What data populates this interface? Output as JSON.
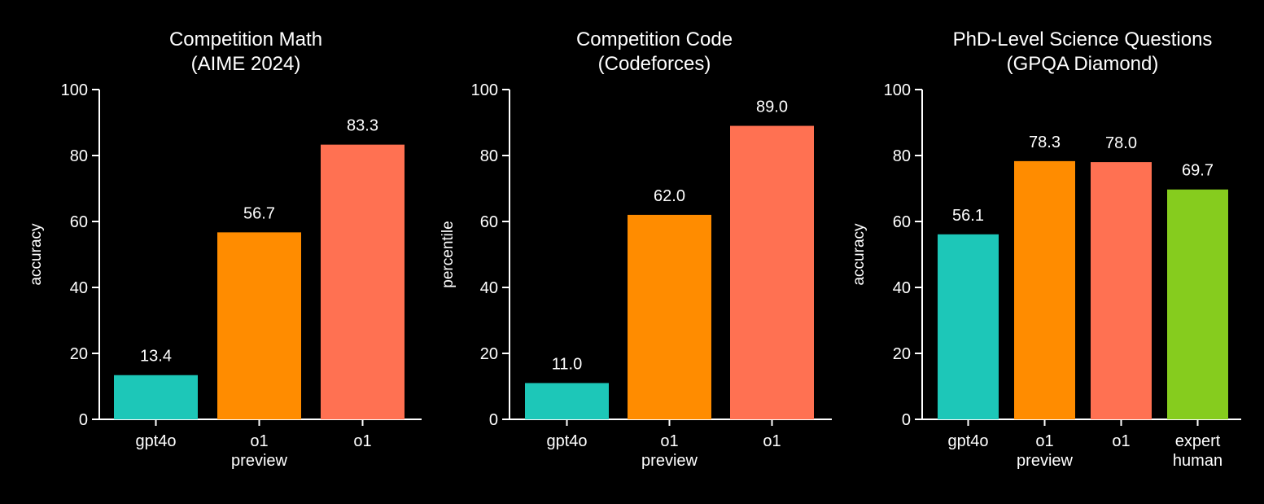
{
  "colors": {
    "background": "#000000",
    "text": "#ffffff",
    "axis": "#ffffff",
    "gpt4o": "#1dc7b8",
    "o1_preview": "#ff8c00",
    "o1": "#ff7152",
    "expert_human": "#86cc1e"
  },
  "chart_data": [
    {
      "type": "bar",
      "title": "Competition Math",
      "subtitle": "(AIME 2024)",
      "xlabel": "",
      "ylabel": "accuracy",
      "ylim": [
        0,
        100
      ],
      "yticks": [
        "0",
        "20",
        "40",
        "60",
        "80",
        "100"
      ],
      "grid": false,
      "categories": [
        [
          "gpt4o"
        ],
        [
          "o1",
          "preview"
        ],
        [
          "o1"
        ]
      ],
      "values": [
        13.4,
        56.7,
        83.3
      ],
      "value_labels": [
        "13.4",
        "56.7",
        "83.3"
      ],
      "colors": [
        "#1dc7b8",
        "#ff8c00",
        "#ff7152"
      ]
    },
    {
      "type": "bar",
      "title": "Competition Code",
      "subtitle": "(Codeforces)",
      "xlabel": "",
      "ylabel": "percentile",
      "ylim": [
        0,
        100
      ],
      "yticks": [
        "0",
        "20",
        "40",
        "60",
        "80",
        "100"
      ],
      "grid": false,
      "categories": [
        [
          "gpt4o"
        ],
        [
          "o1",
          "preview"
        ],
        [
          "o1"
        ]
      ],
      "values": [
        11.0,
        62.0,
        89.0
      ],
      "value_labels": [
        "11.0",
        "62.0",
        "89.0"
      ],
      "colors": [
        "#1dc7b8",
        "#ff8c00",
        "#ff7152"
      ]
    },
    {
      "type": "bar",
      "title": "PhD-Level Science Questions",
      "subtitle": "(GPQA Diamond)",
      "xlabel": "",
      "ylabel": "accuracy",
      "ylim": [
        0,
        100
      ],
      "yticks": [
        "0",
        "20",
        "40",
        "60",
        "80",
        "100"
      ],
      "grid": false,
      "categories": [
        [
          "gpt4o"
        ],
        [
          "o1",
          "preview"
        ],
        [
          "o1"
        ],
        [
          "expert",
          "human"
        ]
      ],
      "values": [
        56.1,
        78.3,
        78.0,
        69.7
      ],
      "value_labels": [
        "56.1",
        "78.3",
        "78.0",
        "69.7"
      ],
      "colors": [
        "#1dc7b8",
        "#ff8c00",
        "#ff7152",
        "#86cc1e"
      ]
    }
  ]
}
